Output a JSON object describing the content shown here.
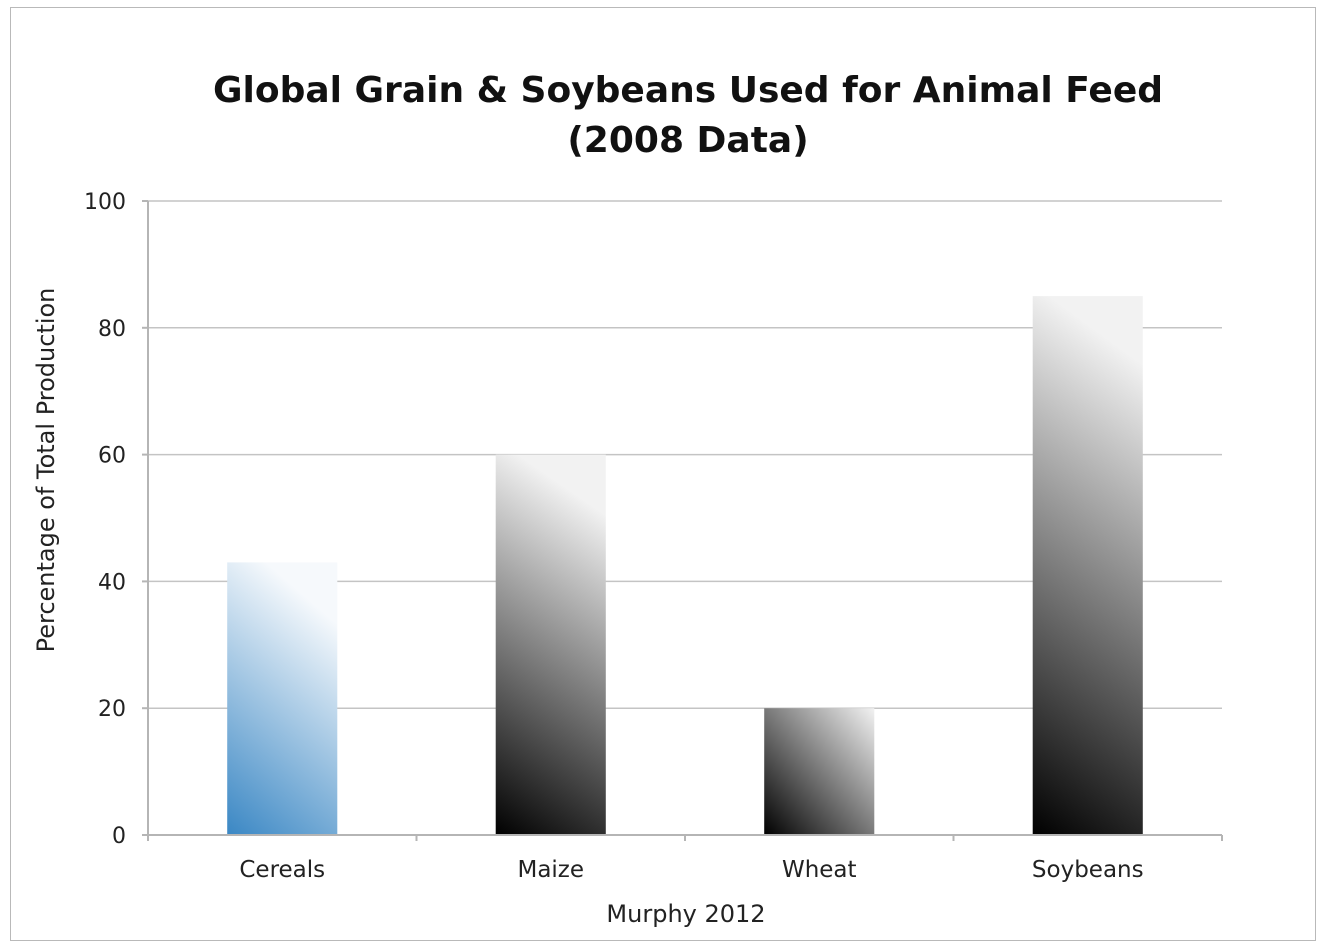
{
  "chart_data": {
    "type": "bar",
    "title": "Global Grain & Soybeans Used for Animal Feed",
    "subtitle": "(2008 Data)",
    "xlabel": "Murphy 2012",
    "ylabel": "Percentage of Total Production",
    "ylim": [
      0,
      100
    ],
    "yticks": [
      "0",
      "20",
      "40",
      "60",
      "80",
      "100"
    ],
    "grid": true,
    "categories": [
      "Cereals",
      "Maize",
      "Wheat",
      "Soybeans"
    ],
    "values": [
      43,
      60,
      20,
      85
    ],
    "colors": [
      "#3a87c4",
      "#000000",
      "#000000",
      "#000000"
    ]
  }
}
